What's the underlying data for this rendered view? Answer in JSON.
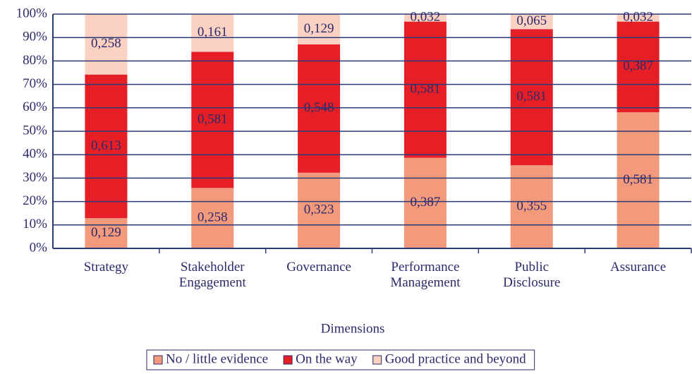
{
  "chart_data": {
    "type": "stacked_bar",
    "x_label": "Dimensions",
    "categories": [
      "Strategy",
      "Stakeholder Engagement",
      "Governance",
      "Performance Management",
      "Public Disclosure",
      "Assurance"
    ],
    "series": [
      {
        "name": "No / little evidence",
        "color": "#f39a7c",
        "values": [
          12.9,
          25.8,
          32.3,
          38.7,
          35.5,
          58.1
        ],
        "value_labels": [
          "0,129",
          "0,258",
          "0,323",
          "0,387",
          "0,355",
          "0,581"
        ]
      },
      {
        "name": "On the way",
        "color": "#e61f27",
        "values": [
          61.3,
          58.1,
          54.8,
          58.1,
          58.1,
          38.7
        ],
        "value_labels": [
          "0,613",
          "0,581",
          "0,548",
          "0,581",
          "0,581",
          "0,387"
        ]
      },
      {
        "name": "Good practice and beyond",
        "color": "#fbd1c1",
        "values": [
          25.8,
          16.1,
          12.9,
          3.2,
          6.5,
          3.2
        ],
        "value_labels": [
          "0,258",
          "0,161",
          "0,129",
          "0,032",
          "0,065",
          "0,032"
        ]
      }
    ],
    "ylim": [
      0,
      100
    ],
    "yticks": [
      {
        "value": 0,
        "label": "0%"
      },
      {
        "value": 10,
        "label": "10%"
      },
      {
        "value": 20,
        "label": "20%"
      },
      {
        "value": 30,
        "label": "30%"
      },
      {
        "value": 40,
        "label": "40%"
      },
      {
        "value": 50,
        "label": "50%"
      },
      {
        "value": 60,
        "label": "60%"
      },
      {
        "value": 70,
        "label": "70%"
      },
      {
        "value": 80,
        "label": "80%"
      },
      {
        "value": 90,
        "label": "90%"
      },
      {
        "value": 100,
        "label": "100%"
      }
    ],
    "grid": true
  }
}
